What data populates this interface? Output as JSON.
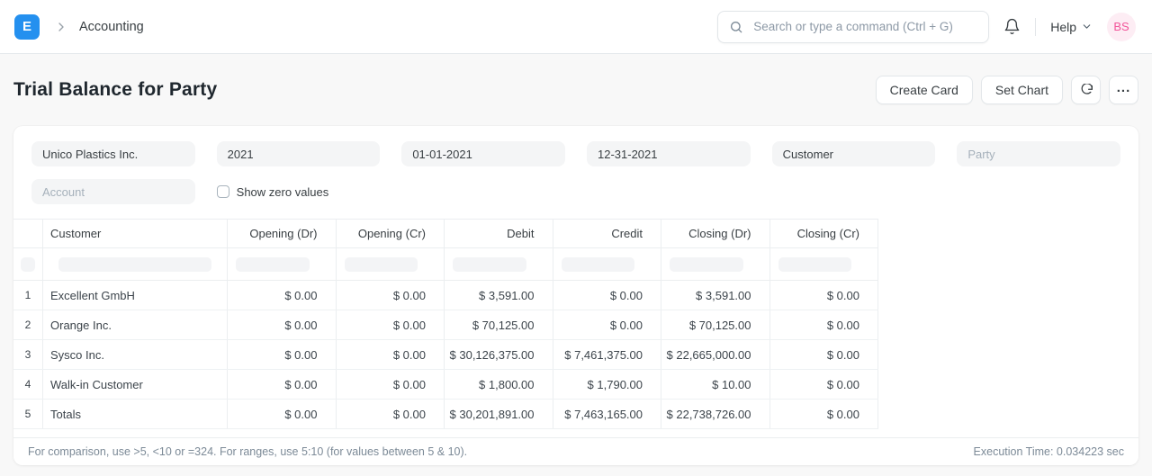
{
  "navbar": {
    "logo_letter": "E",
    "breadcrumb": "Accounting",
    "search_placeholder": "Search or type a command (Ctrl + G)",
    "help_label": "Help",
    "avatar_initials": "BS"
  },
  "page": {
    "title": "Trial Balance for Party",
    "create_card_label": "Create Card",
    "set_chart_label": "Set Chart"
  },
  "filters": {
    "company": "Unico Plastics Inc.",
    "fiscal_year": "2021",
    "from_date": "01-01-2021",
    "to_date": "12-31-2021",
    "party_type": "Customer",
    "party_placeholder": "Party",
    "account_placeholder": "Account",
    "show_zero_values_label": "Show zero values",
    "show_zero_values_checked": false
  },
  "table": {
    "columns": [
      "Customer",
      "Opening (Dr)",
      "Opening (Cr)",
      "Debit",
      "Credit",
      "Closing (Dr)",
      "Closing (Cr)"
    ],
    "rows": [
      {
        "index": "1",
        "customer": "Excellent GmbH",
        "values": [
          "$ 0.00",
          "$ 0.00",
          "$ 3,591.00",
          "$ 0.00",
          "$ 3,591.00",
          "$ 0.00"
        ]
      },
      {
        "index": "2",
        "customer": "Orange Inc.",
        "values": [
          "$ 0.00",
          "$ 0.00",
          "$ 70,125.00",
          "$ 0.00",
          "$ 70,125.00",
          "$ 0.00"
        ]
      },
      {
        "index": "3",
        "customer": "Sysco Inc.",
        "values": [
          "$ 0.00",
          "$ 0.00",
          "$ 30,126,375.00",
          "$ 7,461,375.00",
          "$ 22,665,000.00",
          "$ 0.00"
        ]
      },
      {
        "index": "4",
        "customer": "Walk-in Customer",
        "values": [
          "$ 0.00",
          "$ 0.00",
          "$ 1,800.00",
          "$ 1,790.00",
          "$ 10.00",
          "$ 0.00"
        ]
      },
      {
        "index": "5",
        "customer": "Totals",
        "values": [
          "$ 0.00",
          "$ 0.00",
          "$ 30,201,891.00",
          "$ 7,463,165.00",
          "$ 22,738,726.00",
          "$ 0.00"
        ]
      }
    ]
  },
  "footer": {
    "hint": "For comparison, use >5, <10 or =324. For ranges, use 5:10 (for values between 5 & 10).",
    "execution_time": "Execution Time: 0.034223 sec"
  },
  "colors": {
    "brand": "#2490ef",
    "avatar_bg": "#fdedf4",
    "avatar_text": "#f2569a"
  }
}
